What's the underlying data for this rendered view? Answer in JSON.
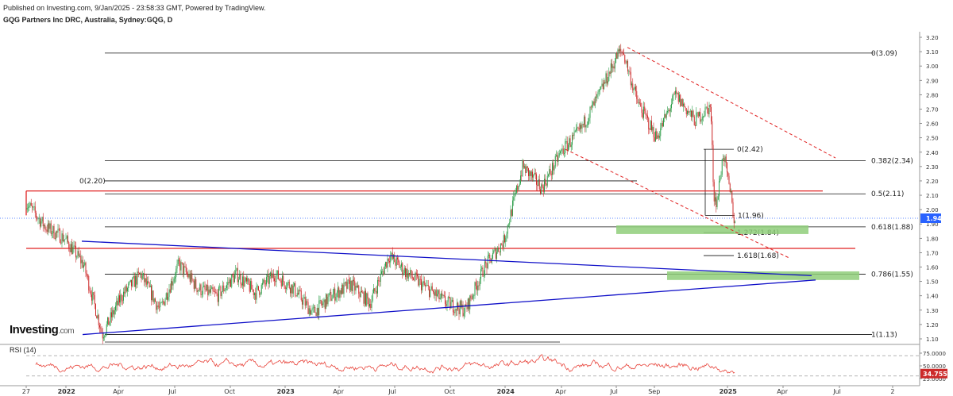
{
  "header": {
    "published": "Published on Investing.com, 9/Jan/2025 - 23:58:33 GMT, Powered by TradingView.",
    "symbol": "GQG Partners Inc DRC, Australia, Sydney:GQG, D"
  },
  "logo": {
    "name": "Investing",
    "domain": ".com"
  },
  "rsi_panel": {
    "label": "RSI (14)"
  },
  "colors": {
    "candle_up": "#2e9e4a",
    "candle_down": "#cc2a2a",
    "trend_blue": "#1010c8",
    "red_level": "#e02020",
    "fib_line": "#111111",
    "zone_green": "#8fce7a",
    "rsi_line": "#e8453c",
    "price_label_bg": "#2962ff"
  },
  "chart_data": [
    {
      "type": "candlestick",
      "title": "GQG Partners Inc DRC, Australia, Sydney:GQG, D",
      "x_ticks": [
        "27",
        "2022",
        "Apr",
        "Jul",
        "Oct",
        "2023",
        "Apr",
        "Jul",
        "Oct",
        "2024",
        "Apr",
        "Jul",
        "Sep",
        "2025",
        "Apr",
        "Jul",
        "2"
      ],
      "y_ticks": [
        "3.20",
        "3.10",
        "3.00",
        "2.90",
        "2.80",
        "2.70",
        "2.60",
        "2.50",
        "2.40",
        "2.30",
        "2.20",
        "2.10",
        "2.00",
        "1.90",
        "1.80",
        "1.70",
        "1.60",
        "1.50",
        "1.40",
        "1.30",
        "1.20",
        "1.10"
      ],
      "ylim": [
        1.08,
        3.24
      ],
      "last_price": "1.94",
      "price_path": [
        {
          "t": "Dec 2021",
          "p": 2.05
        },
        {
          "t": "Jan 2022",
          "p": 1.88
        },
        {
          "t": "Feb 2022",
          "p": 1.8
        },
        {
          "t": "Mar 2022",
          "p": 1.62
        },
        {
          "t": "Apr 2022",
          "p": 1.13
        },
        {
          "t": "May 2022",
          "p": 1.4
        },
        {
          "t": "Jun 2022",
          "p": 1.55
        },
        {
          "t": "Jul 2022",
          "p": 1.3
        },
        {
          "t": "Aug 2022",
          "p": 1.62
        },
        {
          "t": "Sep 2022",
          "p": 1.45
        },
        {
          "t": "Oct 2022",
          "p": 1.4
        },
        {
          "t": "Nov 2022",
          "p": 1.55
        },
        {
          "t": "Dec 2022",
          "p": 1.42
        },
        {
          "t": "Jan 2023",
          "p": 1.55
        },
        {
          "t": "Feb 2023",
          "p": 1.45
        },
        {
          "t": "Mar 2023",
          "p": 1.28
        },
        {
          "t": "Apr 2023",
          "p": 1.4
        },
        {
          "t": "May 2023",
          "p": 1.48
        },
        {
          "t": "Jun 2023",
          "p": 1.35
        },
        {
          "t": "Jul 2023",
          "p": 1.68
        },
        {
          "t": "Aug 2023",
          "p": 1.55
        },
        {
          "t": "Sep 2023",
          "p": 1.45
        },
        {
          "t": "Oct 2023",
          "p": 1.35
        },
        {
          "t": "Nov 2023",
          "p": 1.3
        },
        {
          "t": "Dec 2023",
          "p": 1.6
        },
        {
          "t": "Jan 2024",
          "p": 1.78
        },
        {
          "t": "Feb 2024",
          "p": 2.3
        },
        {
          "t": "Mar 2024",
          "p": 2.15
        },
        {
          "t": "Apr 2024",
          "p": 2.4
        },
        {
          "t": "May 2024",
          "p": 2.55
        },
        {
          "t": "Jun 2024",
          "p": 2.8
        },
        {
          "t": "Jul 2024",
          "p": 3.09
        },
        {
          "t": "Aug 2024",
          "p": 2.75
        },
        {
          "t": "Sep 2024",
          "p": 2.5
        },
        {
          "t": "Oct 2024",
          "p": 2.8
        },
        {
          "t": "Nov 2024",
          "p": 2.62
        },
        {
          "t": "Dec 2024",
          "p": 2.1
        },
        {
          "t": "Jan 2025",
          "p": 1.94
        }
      ],
      "fibonacci_left": [
        {
          "label": "0(3.09)",
          "price": 3.09
        },
        {
          "label": "0.382(2.34)",
          "price": 2.34
        },
        {
          "label": "0.5(2.11)",
          "price": 2.11
        },
        {
          "label": "0.618(1.88)",
          "price": 1.88
        },
        {
          "label": "0.786(1.55)",
          "price": 1.55
        },
        {
          "label": "1(1.13)",
          "price": 1.13
        },
        {
          "label": "0(2.20)",
          "price": 2.2
        }
      ],
      "fibonacci_right": [
        {
          "label": "0(2.42)",
          "price": 2.42
        },
        {
          "label": "1(1.96)",
          "price": 1.96
        },
        {
          "label": "1.272(1.84)",
          "price": 1.84
        },
        {
          "label": "1.618(1.68)",
          "price": 1.68
        }
      ],
      "red_levels": [
        2.13,
        1.73
      ],
      "zones": [
        {
          "from": 1.83,
          "to": 1.89
        },
        {
          "from": 1.51,
          "to": 1.57
        }
      ],
      "trendlines": [
        {
          "from": {
            "t": "Mar 2022",
            "p": 1.78
          },
          "to": {
            "t": "Jan 2025",
            "p": 1.54
          }
        },
        {
          "from": {
            "t": "Jan 2022",
            "p": 1.13
          },
          "to": {
            "t": "Jan 2025",
            "p": 1.51
          }
        }
      ],
      "channel_dashed": [
        {
          "from": {
            "t": "Jul 2024",
            "p": 3.12
          },
          "to": {
            "t": "Feb 2025",
            "p": 2.35
          }
        },
        {
          "from": {
            "t": "May 2024",
            "p": 2.38
          },
          "to": {
            "t": "Dec 2024",
            "p": 1.7
          }
        }
      ]
    },
    {
      "type": "line",
      "title": "RSI (14)",
      "y_ticks": [
        "75.0000",
        "50.0000",
        "25.0000"
      ],
      "ylim": [
        20,
        90
      ],
      "last_value": "34.7557",
      "reference_levels": [
        70,
        30
      ]
    }
  ]
}
